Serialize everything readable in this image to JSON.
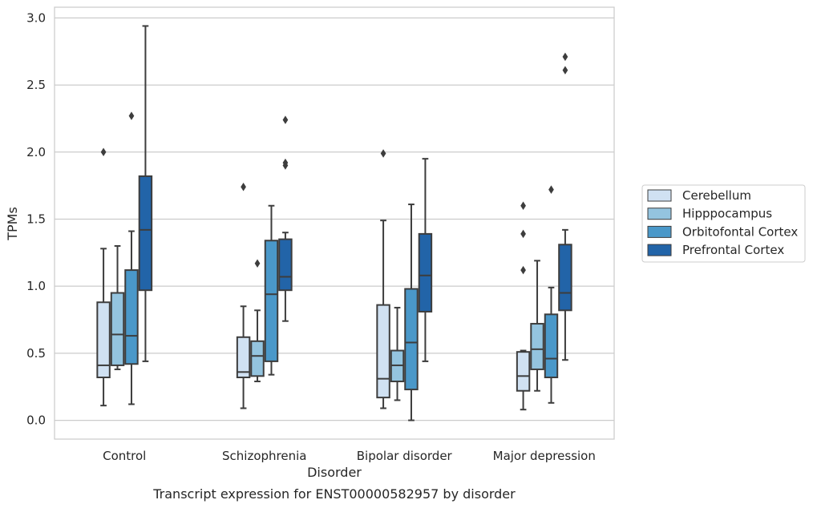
{
  "caption": "Transcript expression for ENST00000582957 by disorder",
  "chart_data": {
    "type": "box",
    "xlabel": "Disorder",
    "ylabel": "TPMs",
    "ylim": [
      -0.14,
      3.08
    ],
    "yticks": [
      "0.0",
      "0.5",
      "1.0",
      "1.5",
      "2.0",
      "2.5",
      "3.0"
    ],
    "categories": [
      "Control",
      "Schizophrenia",
      "Bipolar disorder",
      "Major depression"
    ],
    "grid": "horizontal",
    "legend_position": "right",
    "colors": [
      "#d0e1f2",
      "#94c4df",
      "#4a98c9",
      "#2264a8"
    ],
    "series": [
      {
        "name": "Cerebellum",
        "boxes": [
          {
            "whislo": 0.11,
            "q1": 0.32,
            "med": 0.41,
            "q3": 0.88,
            "whishi": 1.28,
            "fliers": [
              2.0
            ]
          },
          {
            "whislo": 0.09,
            "q1": 0.32,
            "med": 0.36,
            "q3": 0.62,
            "whishi": 0.85,
            "fliers": [
              1.74
            ]
          },
          {
            "whislo": 0.09,
            "q1": 0.17,
            "med": 0.31,
            "q3": 0.86,
            "whishi": 1.49,
            "fliers": [
              1.99
            ]
          },
          {
            "whislo": 0.08,
            "q1": 0.22,
            "med": 0.33,
            "q3": 0.51,
            "whishi": 0.52,
            "fliers": [
              1.12,
              1.39,
              1.6
            ]
          }
        ]
      },
      {
        "name": "Hipppocampus",
        "boxes": [
          {
            "whislo": 0.38,
            "q1": 0.41,
            "med": 0.64,
            "q3": 0.95,
            "whishi": 1.3,
            "fliers": []
          },
          {
            "whislo": 0.29,
            "q1": 0.33,
            "med": 0.48,
            "q3": 0.59,
            "whishi": 0.82,
            "fliers": [
              1.17
            ]
          },
          {
            "whislo": 0.15,
            "q1": 0.29,
            "med": 0.41,
            "q3": 0.52,
            "whishi": 0.84,
            "fliers": []
          },
          {
            "whislo": 0.22,
            "q1": 0.38,
            "med": 0.53,
            "q3": 0.72,
            "whishi": 1.19,
            "fliers": []
          }
        ]
      },
      {
        "name": "Orbitofontal Cortex",
        "boxes": [
          {
            "whislo": 0.12,
            "q1": 0.42,
            "med": 0.63,
            "q3": 1.12,
            "whishi": 1.41,
            "fliers": [
              2.27
            ]
          },
          {
            "whislo": 0.34,
            "q1": 0.44,
            "med": 0.94,
            "q3": 1.34,
            "whishi": 1.6,
            "fliers": []
          },
          {
            "whislo": 0.0,
            "q1": 0.23,
            "med": 0.58,
            "q3": 0.98,
            "whishi": 1.61,
            "fliers": []
          },
          {
            "whislo": 0.13,
            "q1": 0.32,
            "med": 0.46,
            "q3": 0.79,
            "whishi": 0.99,
            "fliers": [
              1.72
            ]
          }
        ]
      },
      {
        "name": "Prefrontal Cortex",
        "boxes": [
          {
            "whislo": 0.44,
            "q1": 0.97,
            "med": 1.42,
            "q3": 1.82,
            "whishi": 2.94,
            "fliers": []
          },
          {
            "whislo": 0.74,
            "q1": 0.97,
            "med": 1.07,
            "q3": 1.35,
            "whishi": 1.4,
            "fliers": [
              1.9,
              1.92,
              2.24
            ]
          },
          {
            "whislo": 0.44,
            "q1": 0.81,
            "med": 1.08,
            "q3": 1.39,
            "whishi": 1.95,
            "fliers": []
          },
          {
            "whislo": 0.45,
            "q1": 0.82,
            "med": 0.95,
            "q3": 1.31,
            "whishi": 1.42,
            "fliers": [
              2.61,
              2.71
            ]
          }
        ]
      }
    ]
  }
}
